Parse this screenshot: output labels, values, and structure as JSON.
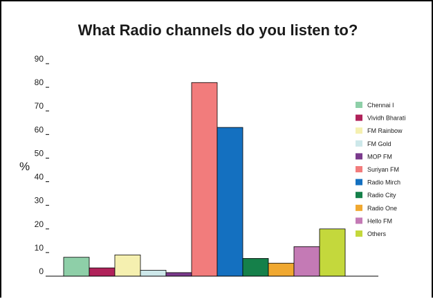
{
  "chart_data": {
    "type": "bar",
    "title": "What Radio channels do you listen to?",
    "ylabel": "%",
    "xlabel": "",
    "ylim": [
      0,
      90
    ],
    "yticks": [
      0,
      10,
      20,
      30,
      40,
      50,
      60,
      70,
      80,
      90
    ],
    "grid": false,
    "legend_position": "right",
    "series": [
      {
        "name": "Chennai I",
        "value": 8,
        "color": "#8ecfa8"
      },
      {
        "name": "Vividh Bharati",
        "value": 3.5,
        "color": "#b0225a"
      },
      {
        "name": "FM Rainbow",
        "value": 9,
        "color": "#f5f0b0"
      },
      {
        "name": "FM Gold",
        "value": 2.5,
        "color": "#cde8ea"
      },
      {
        "name": "MOP FM",
        "value": 1.5,
        "color": "#7a3a8c"
      },
      {
        "name": "Suriyan FM",
        "value": 82,
        "color": "#f27c7c"
      },
      {
        "name": "Radio Mirch",
        "value": 63,
        "color": "#1470c0"
      },
      {
        "name": "Radio City",
        "value": 7.5,
        "color": "#15804a"
      },
      {
        "name": "Radio One",
        "value": 5.5,
        "color": "#f0a830"
      },
      {
        "name": "Hello FM",
        "value": 12.5,
        "color": "#c47ab5"
      },
      {
        "name": "Others",
        "value": 20,
        "color": "#c4d83c"
      }
    ]
  }
}
